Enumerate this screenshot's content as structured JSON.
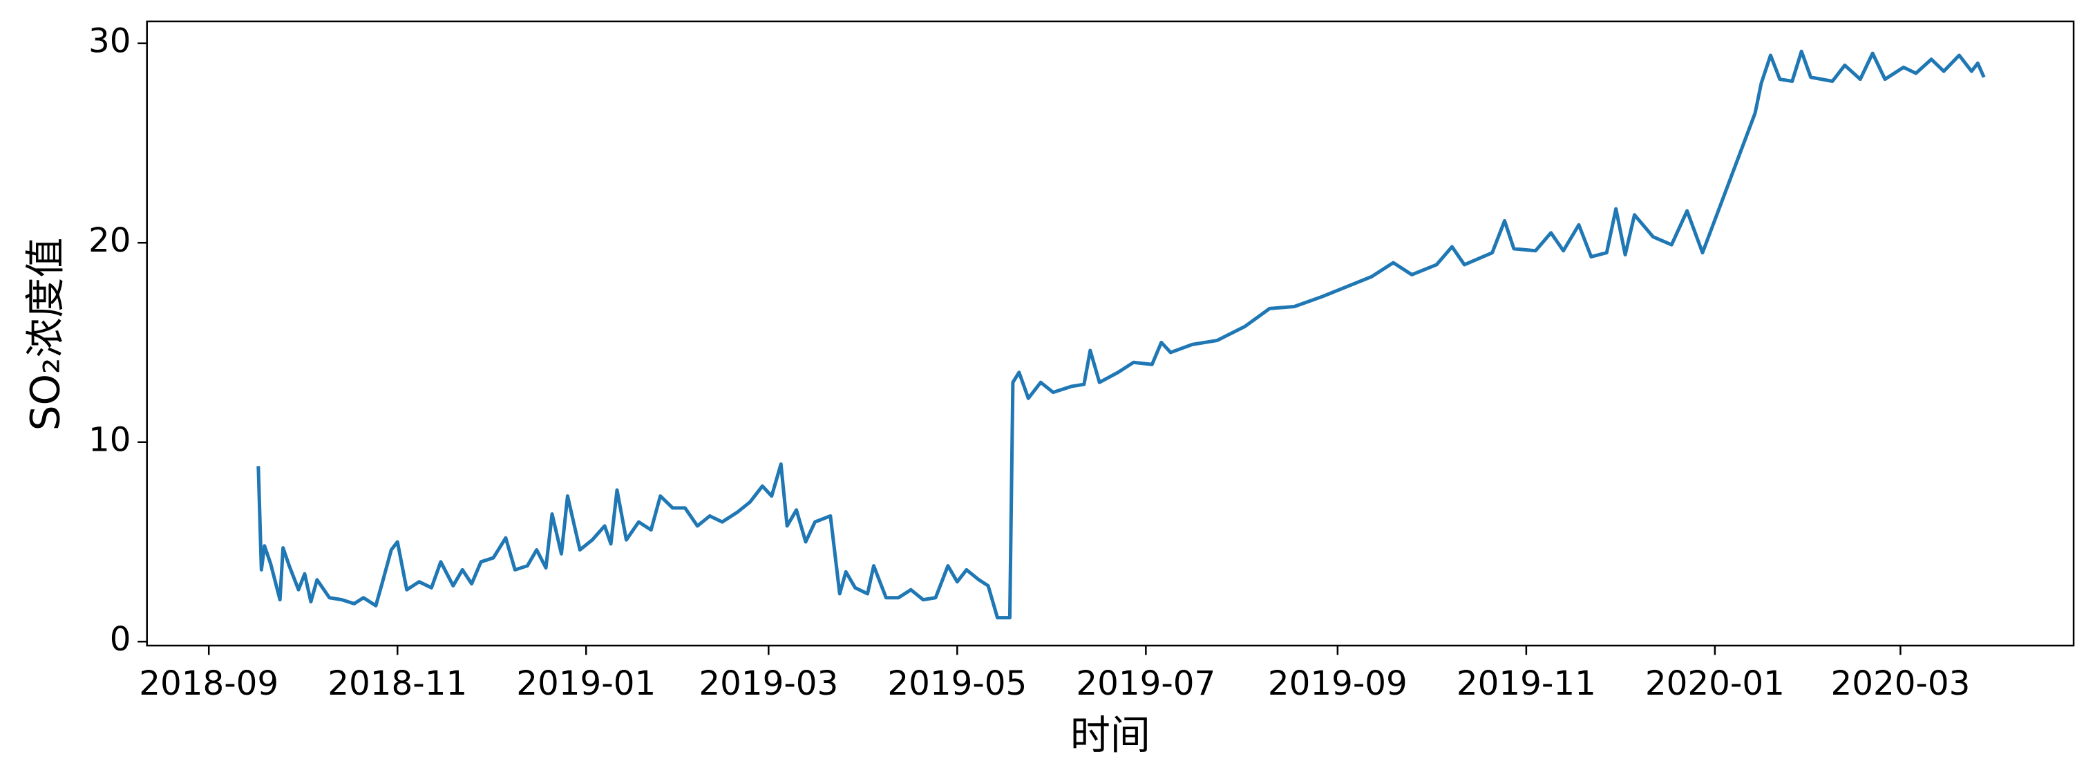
{
  "chart_data": {
    "type": "line",
    "xlabel": "时间",
    "ylabel": "SO₂浓度值",
    "color": "#1f77b4",
    "xlim": [
      "2018-08-12",
      "2020-04-26"
    ],
    "ylim": [
      -0.2,
      31.1
    ],
    "xticks": [
      {
        "value": "2018-09-01",
        "label": "2018-09"
      },
      {
        "value": "2018-11-01",
        "label": "2018-11"
      },
      {
        "value": "2019-01-01",
        "label": "2019-01"
      },
      {
        "value": "2019-03-01",
        "label": "2019-03"
      },
      {
        "value": "2019-05-01",
        "label": "2019-05"
      },
      {
        "value": "2019-07-01",
        "label": "2019-07"
      },
      {
        "value": "2019-09-01",
        "label": "2019-09"
      },
      {
        "value": "2019-11-01",
        "label": "2019-11"
      },
      {
        "value": "2020-01-01",
        "label": "2020-01"
      },
      {
        "value": "2020-03-01",
        "label": "2020-03"
      }
    ],
    "yticks": [
      0,
      10,
      20,
      30
    ],
    "x": [
      "2018-09-17",
      "2018-09-18",
      "2018-09-19",
      "2018-09-21",
      "2018-09-24",
      "2018-09-25",
      "2018-09-27",
      "2018-09-30",
      "2018-10-02",
      "2018-10-04",
      "2018-10-06",
      "2018-10-10",
      "2018-10-14",
      "2018-10-18",
      "2018-10-21",
      "2018-10-25",
      "2018-10-27",
      "2018-10-30",
      "2018-11-01",
      "2018-11-04",
      "2018-11-08",
      "2018-11-12",
      "2018-11-15",
      "2018-11-19",
      "2018-11-22",
      "2018-11-25",
      "2018-11-28",
      "2018-12-02",
      "2018-12-06",
      "2018-12-09",
      "2018-12-13",
      "2018-12-16",
      "2018-12-19",
      "2018-12-21",
      "2018-12-24",
      "2018-12-26",
      "2018-12-30",
      "2019-01-03",
      "2019-01-07",
      "2019-01-09",
      "2019-01-11",
      "2019-01-14",
      "2019-01-18",
      "2019-01-22",
      "2019-01-25",
      "2019-01-29",
      "2019-02-02",
      "2019-02-06",
      "2019-02-10",
      "2019-02-14",
      "2019-02-19",
      "2019-02-23",
      "2019-02-27",
      "2019-03-02",
      "2019-03-05",
      "2019-03-07",
      "2019-03-10",
      "2019-03-13",
      "2019-03-16",
      "2019-03-21",
      "2019-03-24",
      "2019-03-26",
      "2019-03-29",
      "2019-04-02",
      "2019-04-04",
      "2019-04-08",
      "2019-04-12",
      "2019-04-16",
      "2019-04-20",
      "2019-04-24",
      "2019-04-28",
      "2019-05-01",
      "2019-05-04",
      "2019-05-08",
      "2019-05-11",
      "2019-05-14",
      "2019-05-18",
      "2019-05-19",
      "2019-05-21",
      "2019-05-24",
      "2019-05-28",
      "2019-06-01",
      "2019-06-07",
      "2019-06-11",
      "2019-06-13",
      "2019-06-16",
      "2019-06-22",
      "2019-06-27",
      "2019-07-03",
      "2019-07-06",
      "2019-07-09",
      "2019-07-16",
      "2019-07-24",
      "2019-08-02",
      "2019-08-10",
      "2019-08-18",
      "2019-08-27",
      "2019-09-04",
      "2019-09-12",
      "2019-09-19",
      "2019-09-25",
      "2019-10-03",
      "2019-10-08",
      "2019-10-12",
      "2019-10-21",
      "2019-10-25",
      "2019-10-28",
      "2019-11-04",
      "2019-11-09",
      "2019-11-13",
      "2019-11-18",
      "2019-11-22",
      "2019-11-27",
      "2019-11-30",
      "2019-12-03",
      "2019-12-06",
      "2019-12-12",
      "2019-12-18",
      "2019-12-23",
      "2019-12-28",
      "2020-01-14",
      "2020-01-16",
      "2020-01-19",
      "2020-01-22",
      "2020-01-26",
      "2020-01-29",
      "2020-02-01",
      "2020-02-08",
      "2020-02-12",
      "2020-02-17",
      "2020-02-21",
      "2020-02-25",
      "2020-03-02",
      "2020-03-06",
      "2020-03-11",
      "2020-03-15",
      "2020-03-20",
      "2020-03-24",
      "2020-03-26",
      "2020-03-28"
    ],
    "values": [
      8.8,
      3.6,
      4.8,
      3.9,
      2.1,
      4.7,
      3.8,
      2.6,
      3.4,
      2.0,
      3.1,
      2.2,
      2.1,
      1.9,
      2.2,
      1.8,
      2.9,
      4.6,
      5.0,
      2.6,
      3.0,
      2.7,
      4.0,
      2.8,
      3.6,
      2.9,
      4.0,
      4.2,
      5.2,
      3.6,
      3.8,
      4.6,
      3.7,
      6.4,
      4.4,
      7.3,
      4.6,
      5.1,
      5.8,
      4.9,
      7.6,
      5.1,
      6.0,
      5.6,
      7.3,
      6.7,
      6.7,
      5.8,
      6.3,
      6.0,
      6.5,
      7.0,
      7.8,
      7.3,
      8.9,
      5.8,
      6.6,
      5.0,
      6.0,
      6.3,
      2.4,
      3.5,
      2.7,
      2.4,
      3.8,
      2.2,
      2.2,
      2.6,
      2.1,
      2.2,
      3.8,
      3.0,
      3.6,
      3.1,
      2.8,
      1.2,
      1.2,
      13.0,
      13.5,
      12.2,
      13.0,
      12.5,
      12.8,
      12.9,
      14.6,
      13.0,
      13.5,
      14.0,
      13.9,
      15.0,
      14.5,
      14.9,
      15.1,
      15.8,
      16.7,
      16.8,
      17.3,
      17.8,
      18.3,
      19.0,
      18.4,
      18.9,
      19.8,
      18.9,
      19.5,
      21.1,
      19.7,
      19.6,
      20.5,
      19.6,
      20.9,
      19.3,
      19.5,
      21.7,
      19.4,
      21.4,
      20.3,
      19.9,
      21.6,
      19.5,
      26.5,
      28.0,
      29.4,
      28.2,
      28.1,
      29.6,
      28.3,
      28.1,
      28.9,
      28.2,
      29.5,
      28.2,
      28.8,
      28.5,
      29.2,
      28.6,
      29.4,
      28.6,
      29.0,
      28.3
    ]
  }
}
